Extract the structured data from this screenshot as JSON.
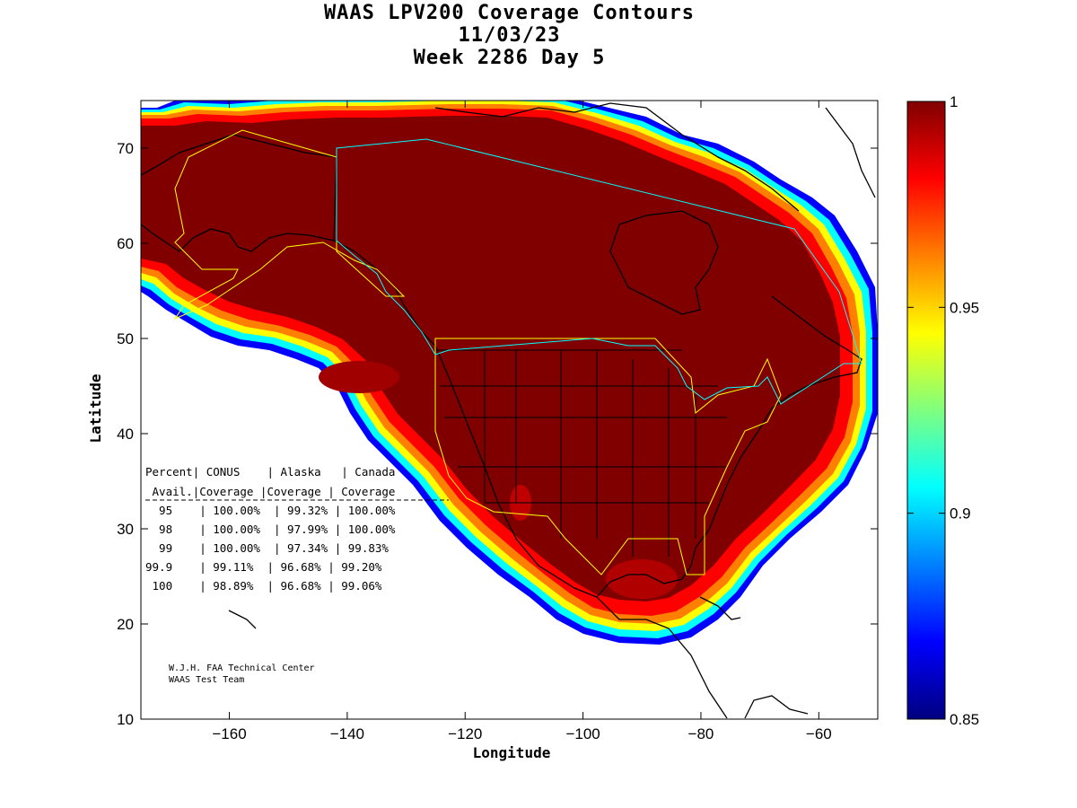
{
  "title": {
    "line1": "WAAS LPV200 Coverage Contours",
    "line2": "11/03/23",
    "line3": "Week 2286 Day 5"
  },
  "axes": {
    "xlabel": "Longitude",
    "ylabel": "Latitude",
    "xlim": [
      -175,
      -50
    ],
    "ylim": [
      10,
      75
    ],
    "xticks": [
      -160,
      -140,
      -120,
      -100,
      -80,
      -60
    ],
    "yticks": [
      10,
      20,
      30,
      40,
      50,
      60,
      70
    ]
  },
  "colorbar": {
    "min": 0.85,
    "max": 1,
    "ticks": [
      "1",
      "0.95",
      "0.9",
      "0.85"
    ],
    "tick_values": [
      1,
      0.95,
      0.9,
      0.85
    ],
    "colormap": "jet"
  },
  "stats_table": {
    "header1": "Percent| CONUS    | Alaska   | Canada",
    "header2": " Avail.|Coverage |Coverage | Coverage",
    "rows": [
      "  95    | 100.00%  | 99.32% | 100.00%",
      "  98    | 100.00%  | 97.99% | 100.00%",
      "  99    | 100.00%  | 97.34% | 99.83%",
      "99.9    | 99.11%  | 96.68% | 99.20%",
      " 100    | 98.89%  | 96.68% | 99.06%"
    ]
  },
  "credit": {
    "line1": "W.J.H. FAA Technical Center",
    "line2": "WAAS Test Team"
  },
  "colors": {
    "core": "#800000",
    "ring_red": "#ff0000",
    "ring_orange": "#ff8000",
    "ring_yellow": "#ffff00",
    "ring_cyan": "#00ffff",
    "ring_blue": "#0000ff",
    "outline_us": "#ffff00",
    "outline_ak": "#ffff00",
    "outline_canada": "#00ffff"
  }
}
